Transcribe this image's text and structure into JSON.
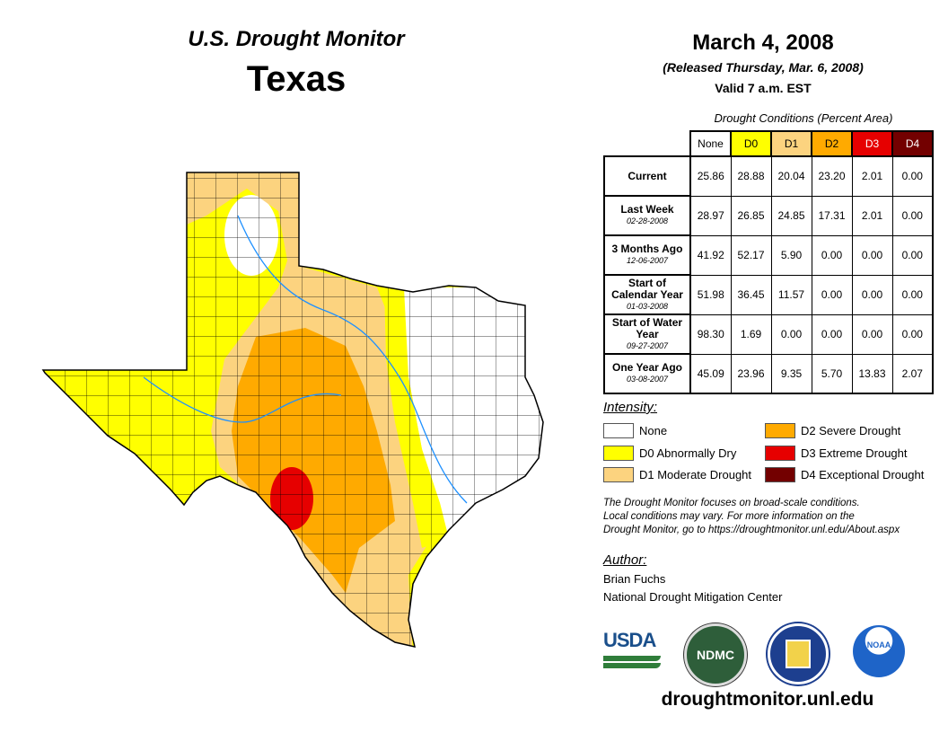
{
  "header": {
    "subtitle": "U.S. Drought Monitor",
    "state": "Texas",
    "date": "March 4, 2008",
    "released": "(Released Thursday, Mar. 6, 2008)",
    "valid": "Valid 7 a.m. EST"
  },
  "table": {
    "caption": "Drought Conditions (Percent Area)",
    "columns": [
      "None",
      "D0",
      "D1",
      "D2",
      "D3",
      "D4"
    ],
    "column_colors": [
      "#ffffff",
      "#ffff00",
      "#fcd37f",
      "#ffaa00",
      "#e60000",
      "#730000"
    ],
    "rows": [
      {
        "label": "Current",
        "date": "",
        "values": [
          "25.86",
          "28.88",
          "20.04",
          "23.20",
          "2.01",
          "0.00"
        ]
      },
      {
        "label": "Last Week",
        "date": "02-28-2008",
        "values": [
          "28.97",
          "26.85",
          "24.85",
          "17.31",
          "2.01",
          "0.00"
        ]
      },
      {
        "label": "3 Months Ago",
        "date": "12-06-2007",
        "values": [
          "41.92",
          "52.17",
          "5.90",
          "0.00",
          "0.00",
          "0.00"
        ]
      },
      {
        "label": "Start of Calendar Year",
        "date": "01-03-2008",
        "values": [
          "51.98",
          "36.45",
          "11.57",
          "0.00",
          "0.00",
          "0.00"
        ]
      },
      {
        "label": "Start of Water Year",
        "date": "09-27-2007",
        "values": [
          "98.30",
          "1.69",
          "0.00",
          "0.00",
          "0.00",
          "0.00"
        ]
      },
      {
        "label": "One Year Ago",
        "date": "03-08-2007",
        "values": [
          "45.09",
          "23.96",
          "9.35",
          "5.70",
          "13.83",
          "2.07"
        ]
      }
    ]
  },
  "legend": {
    "title": "Intensity:",
    "items": [
      {
        "label": "None",
        "color": "#ffffff"
      },
      {
        "label": "D0 Abnormally Dry",
        "color": "#ffff00"
      },
      {
        "label": "D1 Moderate Drought",
        "color": "#fcd37f"
      },
      {
        "label": "D2 Severe Drought",
        "color": "#ffaa00"
      },
      {
        "label": "D3 Extreme Drought",
        "color": "#e60000"
      },
      {
        "label": "D4 Exceptional Drought",
        "color": "#730000"
      }
    ]
  },
  "note": [
    "The Drought Monitor focuses on broad-scale conditions.",
    "Local conditions may vary. For more information on the",
    "Drought Monitor, go to https://droughtmonitor.unl.edu/About.aspx"
  ],
  "author": {
    "title": "Author:",
    "name": "Brian Fuchs",
    "org": "National Drought Mitigation Center"
  },
  "logos": {
    "usda": "USDA",
    "ndmc": "NDMC",
    "noaa": "NOAA"
  },
  "footer_url": "droughtmonitor.unl.edu"
}
